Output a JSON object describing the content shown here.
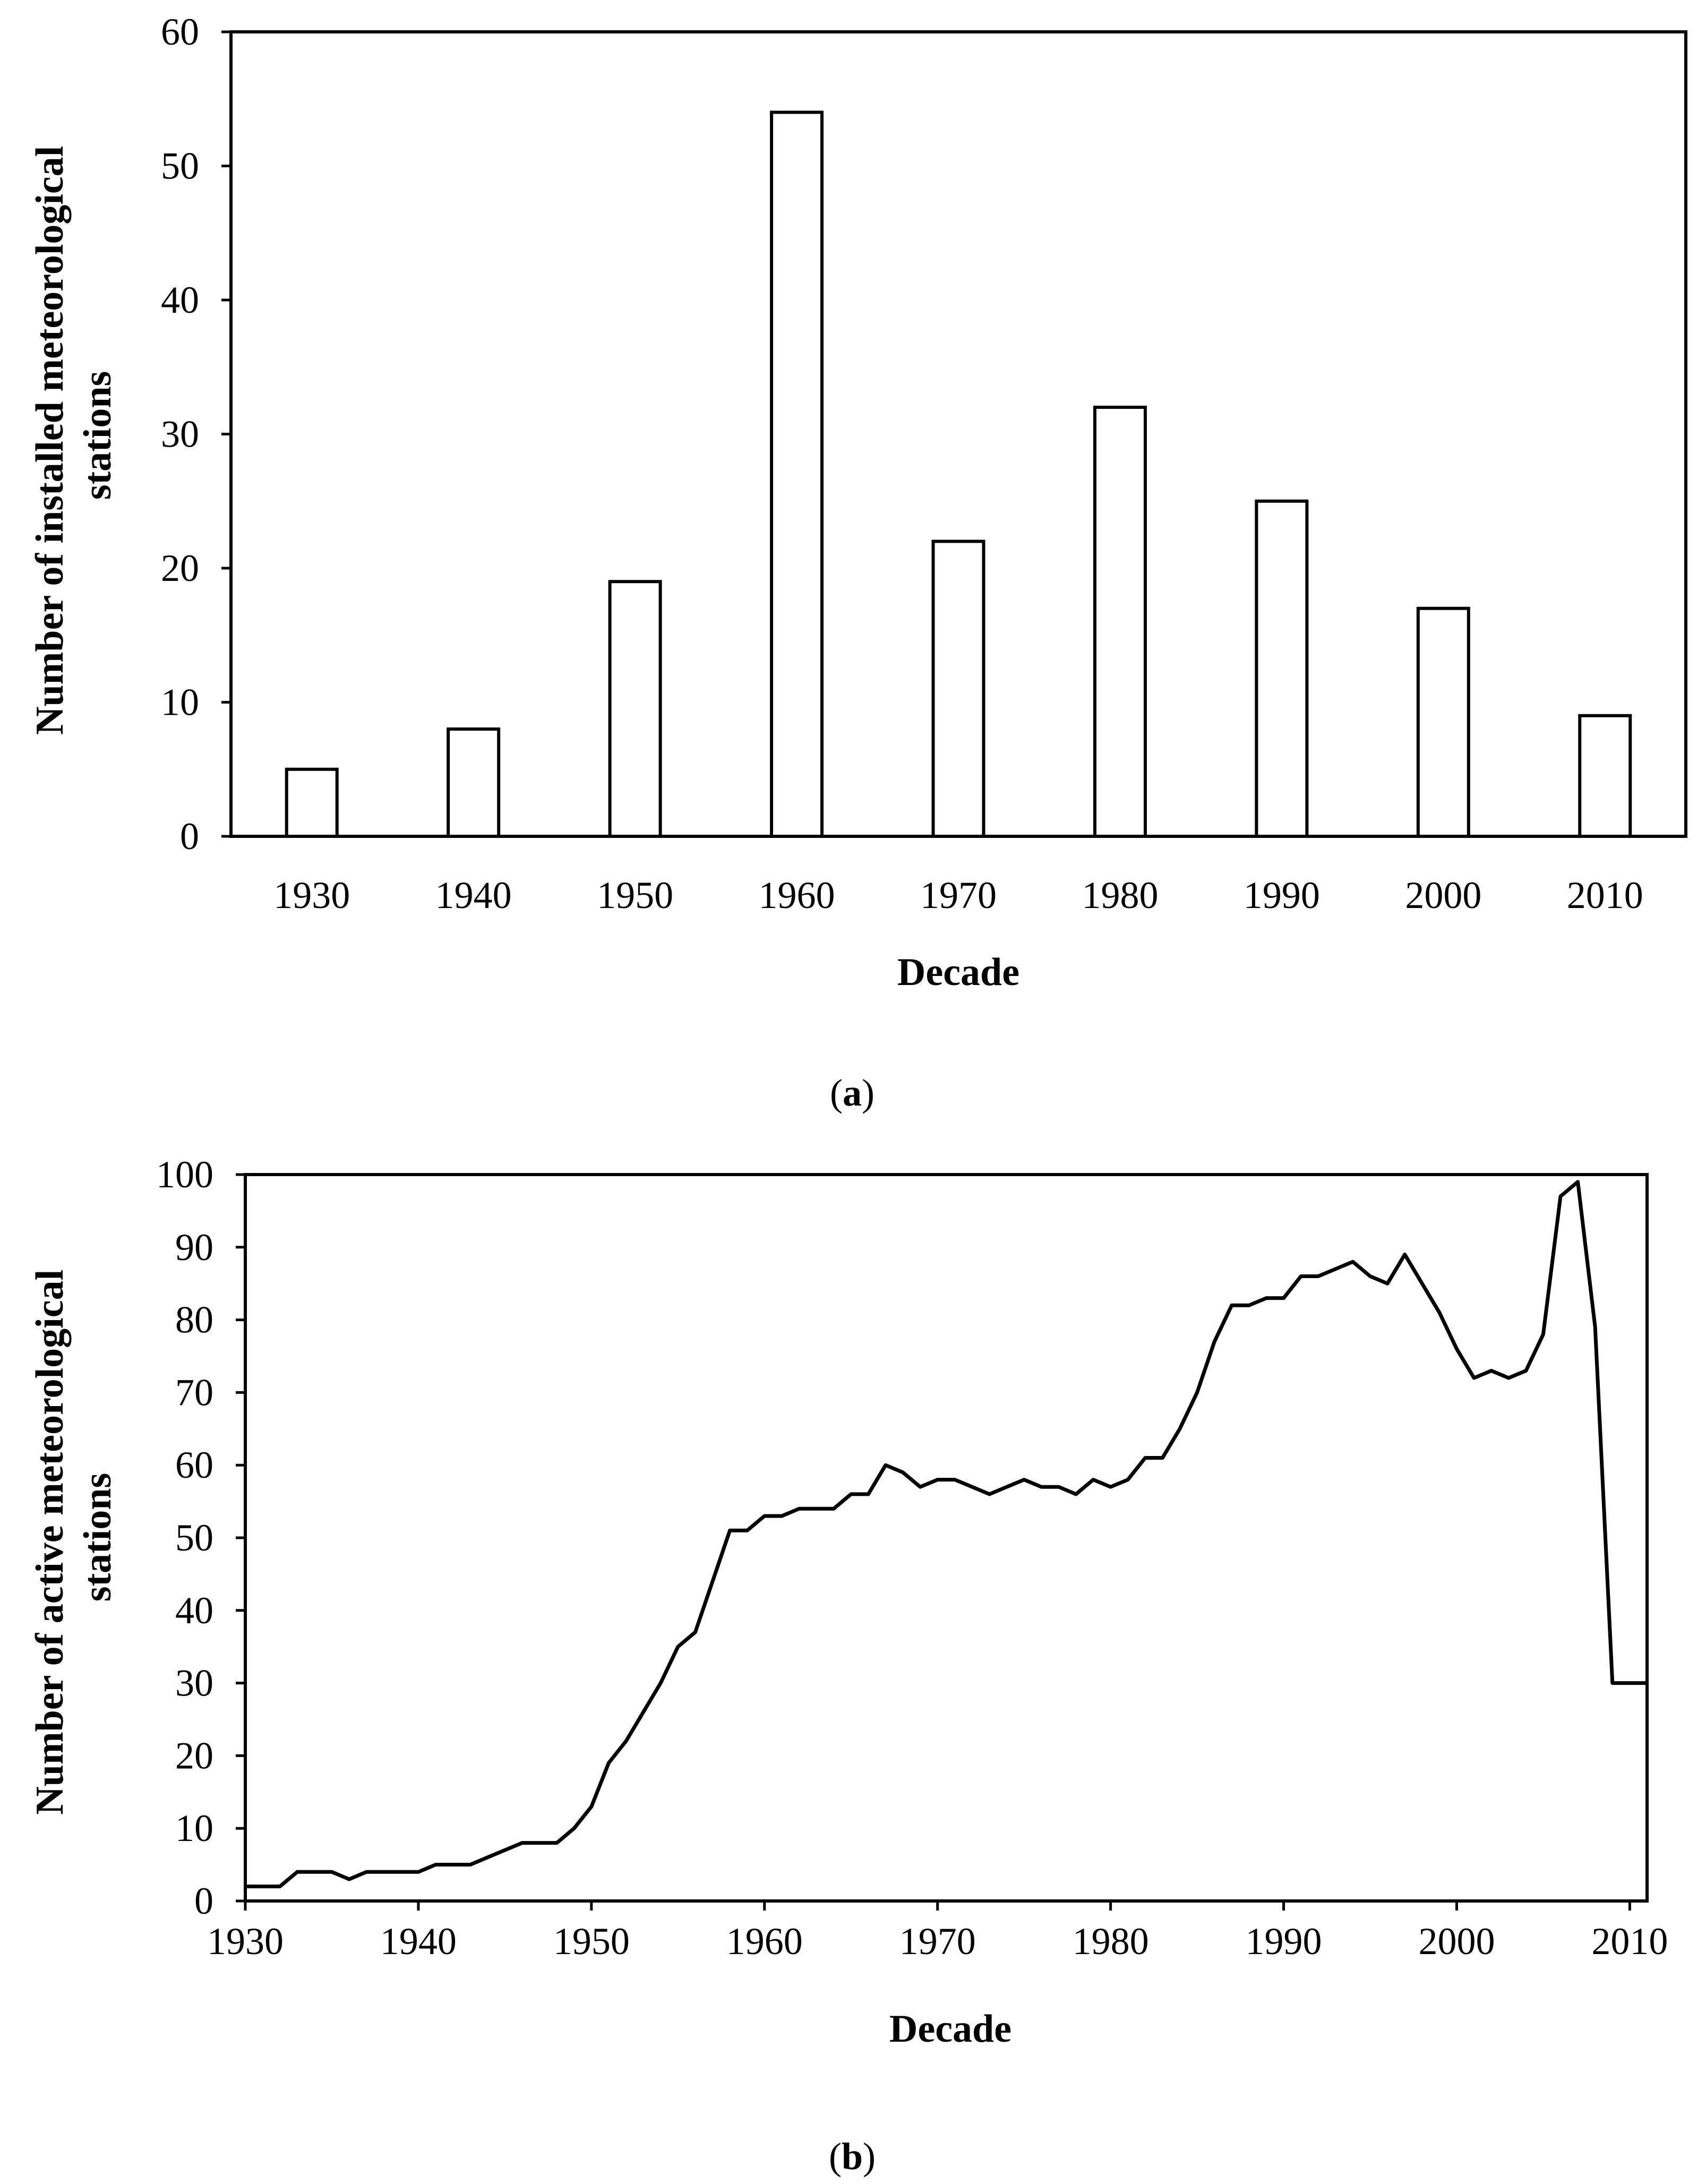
{
  "chart_data": [
    {
      "type": "bar",
      "caption_letter": "a",
      "categories": [
        "1930",
        "1940",
        "1950",
        "1960",
        "1970",
        "1980",
        "1990",
        "2000",
        "2010"
      ],
      "values": [
        5,
        8,
        19,
        54,
        22,
        32,
        25,
        17,
        9
      ],
      "xlabel": "Decade",
      "ylabel_lines": [
        "Number of installed meteorological",
        "stations"
      ],
      "ylim": [
        0,
        60
      ],
      "yticks": [
        "0",
        "10",
        "20",
        "30",
        "40",
        "50",
        "60"
      ],
      "grid": false
    },
    {
      "type": "line",
      "caption_letter": "b",
      "x": [
        1930,
        1931,
        1932,
        1933,
        1934,
        1935,
        1936,
        1937,
        1938,
        1939,
        1940,
        1941,
        1942,
        1943,
        1944,
        1945,
        1946,
        1947,
        1948,
        1949,
        1950,
        1951,
        1952,
        1953,
        1954,
        1955,
        1956,
        1957,
        1958,
        1959,
        1960,
        1961,
        1962,
        1963,
        1964,
        1965,
        1966,
        1967,
        1968,
        1969,
        1970,
        1971,
        1972,
        1973,
        1974,
        1975,
        1976,
        1977,
        1978,
        1979,
        1980,
        1981,
        1982,
        1983,
        1984,
        1985,
        1986,
        1987,
        1988,
        1989,
        1990,
        1991,
        1992,
        1993,
        1994,
        1995,
        1996,
        1997,
        1998,
        1999,
        2000,
        2001,
        2002,
        2003,
        2004,
        2005,
        2006,
        2007,
        2008,
        2009,
        2010,
        2011
      ],
      "y": [
        2,
        2,
        2,
        4,
        4,
        4,
        3,
        4,
        4,
        4,
        4,
        5,
        5,
        5,
        6,
        7,
        8,
        8,
        8,
        10,
        13,
        19,
        22,
        26,
        30,
        35,
        37,
        44,
        51,
        51,
        53,
        53,
        54,
        54,
        54,
        56,
        56,
        60,
        59,
        57,
        58,
        58,
        57,
        56,
        57,
        58,
        57,
        57,
        56,
        58,
        57,
        58,
        61,
        61,
        65,
        70,
        77,
        82,
        82,
        83,
        83,
        86,
        86,
        87,
        88,
        86,
        85,
        89,
        85,
        81,
        76,
        72,
        73,
        72,
        73,
        78,
        97,
        99,
        79,
        30,
        30,
        30
      ],
      "xlabel": "Decade",
      "ylabel_lines": [
        "Number of active meteorological",
        "stations"
      ],
      "xlim": [
        1930,
        2011
      ],
      "ylim": [
        0,
        100
      ],
      "xticks": [
        "1930",
        "1940",
        "1950",
        "1960",
        "1970",
        "1980",
        "1990",
        "2000",
        "2010"
      ],
      "yticks": [
        "0",
        "10",
        "20",
        "30",
        "40",
        "50",
        "60",
        "70",
        "80",
        "90",
        "100"
      ],
      "grid": false
    }
  ]
}
